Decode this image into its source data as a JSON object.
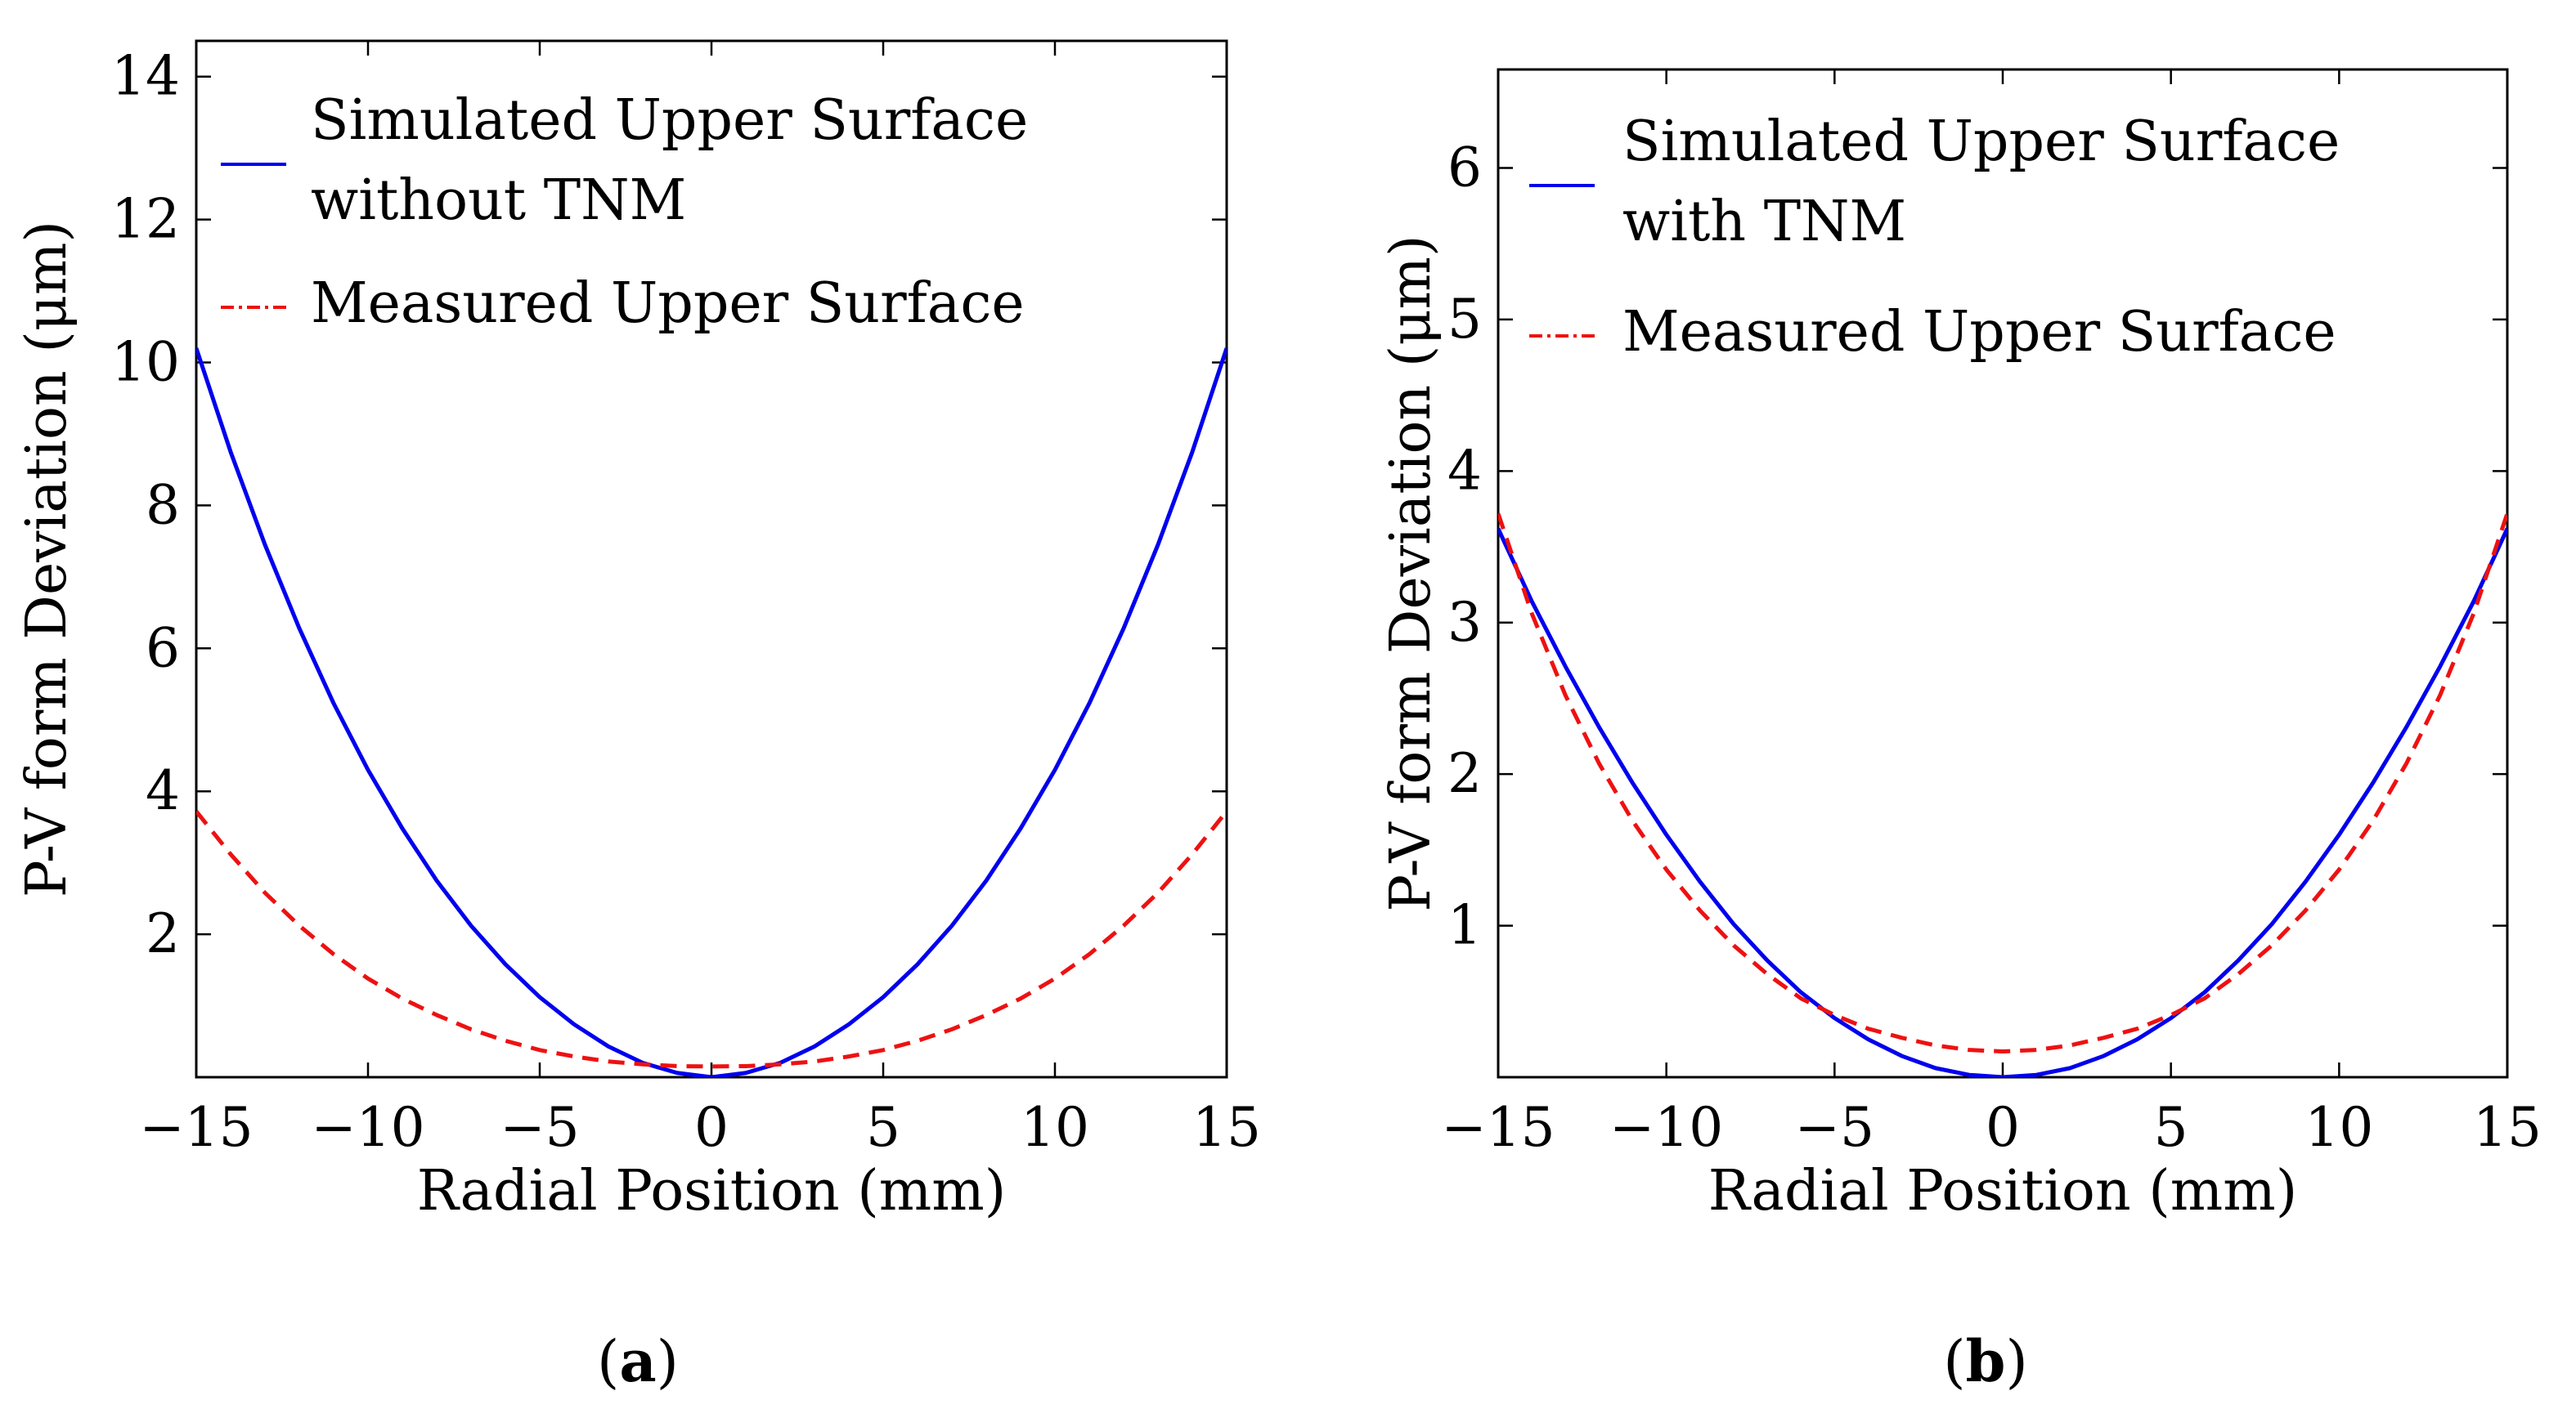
{
  "chart_data": [
    {
      "type": "line",
      "caption_letter": "a",
      "xlabel": "Radial Position (mm)",
      "ylabel": "P-V form Deviation (μm)",
      "xlim": [
        -15,
        15
      ],
      "ylim": [
        0,
        14.5
      ],
      "xticks": [
        -15,
        -10,
        -5,
        0,
        5,
        10,
        15
      ],
      "xtick_labels": [
        "−15",
        "−10",
        "−5",
        "0",
        "5",
        "10",
        "15"
      ],
      "yticks": [
        2,
        4,
        6,
        8,
        10,
        12,
        14
      ],
      "ytick_labels": [
        "2",
        "4",
        "6",
        "8",
        "10",
        "12",
        "14"
      ],
      "legend_position": "top-left",
      "series": [
        {
          "name": "Simulated Upper Surface without TNM",
          "legend_lines": [
            "Simulated Upper Surface",
            "without TNM"
          ],
          "color": "#0000ee",
          "style": "solid",
          "x": [
            -15,
            -14,
            -13,
            -12,
            -11,
            -10,
            -9,
            -8,
            -7,
            -6,
            -5,
            -4,
            -3,
            -2,
            -1,
            0,
            1,
            2,
            3,
            4,
            5,
            6,
            7,
            8,
            9,
            10,
            11,
            12,
            13,
            14,
            15
          ],
          "y": [
            10.2,
            8.75,
            7.45,
            6.28,
            5.23,
            4.3,
            3.48,
            2.75,
            2.12,
            1.58,
            1.12,
            0.74,
            0.43,
            0.2,
            0.06,
            0.0,
            0.06,
            0.2,
            0.43,
            0.74,
            1.12,
            1.58,
            2.12,
            2.75,
            3.48,
            4.3,
            5.23,
            6.28,
            7.45,
            8.75,
            10.2
          ]
        },
        {
          "name": "Measured Upper Surface",
          "legend_lines": [
            "Measured Upper Surface"
          ],
          "color": "#ee1111",
          "style": "dashed",
          "x": [
            -15,
            -14,
            -13,
            -12,
            -11,
            -10,
            -9,
            -8,
            -7,
            -6,
            -5,
            -4,
            -3,
            -2,
            -1,
            0,
            1,
            2,
            3,
            4,
            5,
            6,
            7,
            8,
            9,
            10,
            11,
            12,
            13,
            14,
            15
          ],
          "y": [
            3.72,
            3.12,
            2.58,
            2.12,
            1.72,
            1.38,
            1.1,
            0.87,
            0.67,
            0.51,
            0.38,
            0.29,
            0.22,
            0.18,
            0.155,
            0.15,
            0.155,
            0.18,
            0.22,
            0.29,
            0.38,
            0.51,
            0.67,
            0.87,
            1.1,
            1.38,
            1.72,
            2.12,
            2.58,
            3.12,
            3.72
          ]
        }
      ]
    },
    {
      "type": "line",
      "caption_letter": "b",
      "xlabel": "Radial Position (mm)",
      "ylabel": "P-V form Deviation (μm)",
      "xlim": [
        -15,
        15
      ],
      "ylim": [
        0,
        6.65
      ],
      "xticks": [
        -15,
        -10,
        -5,
        0,
        5,
        10,
        15
      ],
      "xtick_labels": [
        "−15",
        "−10",
        "−5",
        "0",
        "5",
        "10",
        "15"
      ],
      "yticks": [
        1,
        2,
        3,
        4,
        5,
        6
      ],
      "ytick_labels": [
        "1",
        "2",
        "3",
        "4",
        "5",
        "6"
      ],
      "legend_position": "top-left",
      "series": [
        {
          "name": "Simulated Upper Surface with TNM",
          "legend_lines": [
            "Simulated Upper Surface",
            "with TNM"
          ],
          "color": "#0000ee",
          "style": "solid",
          "x": [
            -15,
            -14,
            -13,
            -12,
            -11,
            -10,
            -9,
            -8,
            -7,
            -6,
            -5,
            -4,
            -3,
            -2,
            -1,
            0,
            1,
            2,
            3,
            4,
            5,
            6,
            7,
            8,
            9,
            10,
            11,
            12,
            13,
            14,
            15
          ],
          "y": [
            3.62,
            3.14,
            2.71,
            2.31,
            1.94,
            1.6,
            1.29,
            1.01,
            0.77,
            0.56,
            0.39,
            0.25,
            0.14,
            0.06,
            0.015,
            0.0,
            0.015,
            0.06,
            0.14,
            0.25,
            0.39,
            0.56,
            0.77,
            1.01,
            1.29,
            1.6,
            1.94,
            2.31,
            2.71,
            3.14,
            3.62
          ]
        },
        {
          "name": "Measured Upper Surface",
          "legend_lines": [
            "Measured Upper Surface"
          ],
          "color": "#ee1111",
          "style": "dashed",
          "x": [
            -15,
            -14,
            -13,
            -12,
            -11,
            -10,
            -9,
            -8,
            -7,
            -6,
            -5,
            -4,
            -3,
            -2,
            -1,
            0,
            1,
            2,
            3,
            4,
            5,
            6,
            7,
            8,
            9,
            10,
            11,
            12,
            13,
            14,
            15
          ],
          "y": [
            3.72,
            3.06,
            2.52,
            2.07,
            1.69,
            1.37,
            1.1,
            0.87,
            0.68,
            0.52,
            0.41,
            0.32,
            0.26,
            0.21,
            0.18,
            0.17,
            0.18,
            0.21,
            0.26,
            0.32,
            0.41,
            0.52,
            0.68,
            0.87,
            1.1,
            1.37,
            1.69,
            2.07,
            2.52,
            3.06,
            3.72
          ]
        }
      ]
    }
  ]
}
